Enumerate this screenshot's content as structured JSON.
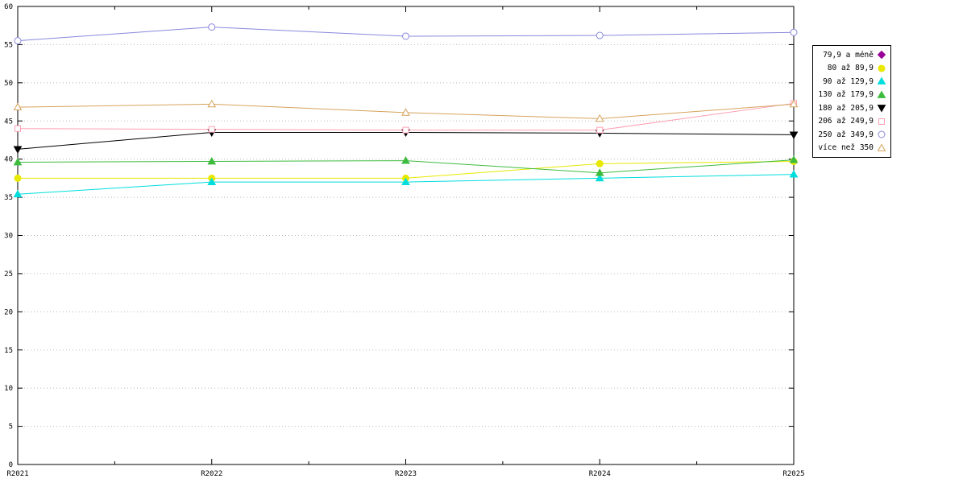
{
  "chart_data": {
    "type": "line",
    "title": "",
    "xlabel": "",
    "ylabel": "",
    "categories": [
      "R2021",
      "R2022",
      "R2023",
      "R2024",
      "R2025"
    ],
    "ylim": [
      0,
      60
    ],
    "ytick_step": 5,
    "grid": "horizontal-dotted",
    "legend_position": "right-outside",
    "axis_color": "#000000",
    "grid_color": "#b8b8b8",
    "series": [
      {
        "name": "79,9 a méně",
        "marker": "diamond-filled",
        "color": "#990099",
        "values": []
      },
      {
        "name": "80 až 89,9",
        "marker": "circle-filled",
        "color": "#e8e800",
        "values": [
          37.5,
          37.5,
          37.5,
          39.4,
          39.7
        ]
      },
      {
        "name": "90 až 129,9",
        "marker": "triangle-filled",
        "color": "#00dddd",
        "values": [
          35.4,
          37.0,
          37.0,
          37.5,
          38.0
        ]
      },
      {
        "name": "130 až 179,9",
        "marker": "triangle-filled",
        "color": "#3dbb3d",
        "values": [
          39.6,
          39.7,
          39.8,
          38.2,
          39.9
        ]
      },
      {
        "name": "180 až 205,9",
        "marker": "triangle-down-filled",
        "color": "#000000",
        "values": [
          41.3,
          43.5,
          43.5,
          43.4,
          43.2
        ]
      },
      {
        "name": "206 až 249,9",
        "marker": "square-open",
        "color": "#ff9fb4",
        "values": [
          44.0,
          43.9,
          43.8,
          43.8,
          47.3
        ]
      },
      {
        "name": "250 až 349,9",
        "marker": "circle-open",
        "color": "#8888dd",
        "values": [
          55.5,
          57.3,
          56.1,
          56.2,
          56.6
        ]
      },
      {
        "name": "více než 350",
        "marker": "triangle-open",
        "color": "#d6a35c",
        "values": [
          46.8,
          47.2,
          46.1,
          45.3,
          47.2
        ]
      }
    ]
  }
}
